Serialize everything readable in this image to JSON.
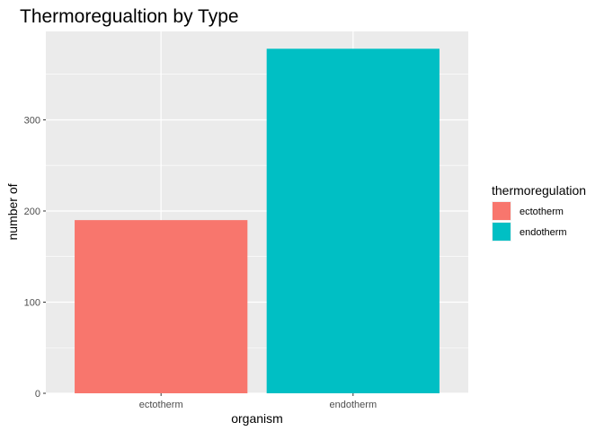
{
  "chart_data": {
    "type": "bar",
    "title": "Thermoregualtion by Type",
    "xlabel": "organism",
    "ylabel": "number of",
    "categories": [
      "ectotherm",
      "endotherm"
    ],
    "values": [
      190,
      378
    ],
    "colors": [
      "#F8766D",
      "#00BFC4"
    ],
    "ylim": [
      0,
      397
    ],
    "yticks": [
      0,
      100,
      200,
      300
    ],
    "grid": true,
    "panel_background": "#EBEBEB",
    "legend": {
      "title": "thermoregulation",
      "position": "right",
      "entries": [
        "ectotherm",
        "endotherm"
      ]
    }
  }
}
